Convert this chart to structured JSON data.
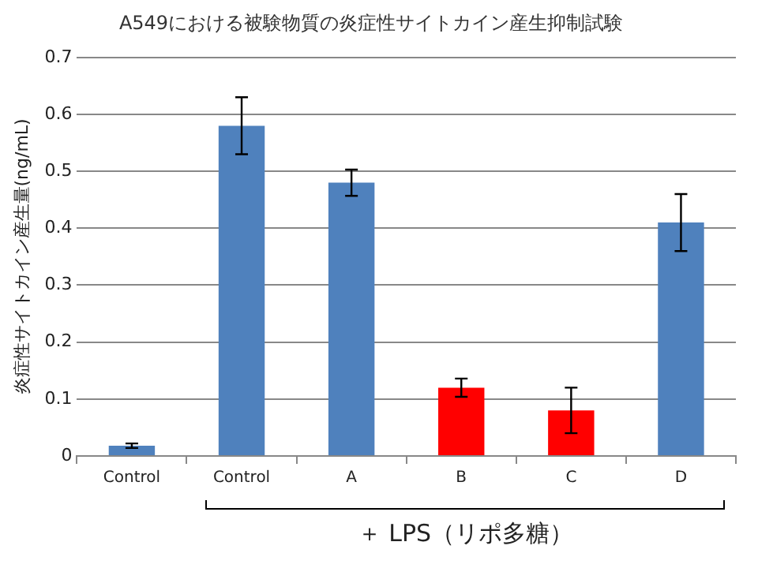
{
  "chart_data": {
    "type": "bar",
    "title": "A549における被験物質の炎症性サイトカイン産生抑制試験",
    "ylabel": "炎症性サイトカイン産生量(ng/mL)",
    "categories": [
      "Control",
      "Control",
      "A",
      "B",
      "C",
      "D"
    ],
    "values": [
      0.018,
      0.58,
      0.48,
      0.12,
      0.08,
      0.41
    ],
    "colors": [
      "#4f81bd",
      "#4f81bd",
      "#4f81bd",
      "#ff0000",
      "#ff0000",
      "#4f81bd"
    ],
    "errors": [
      0.004,
      0.05,
      0.023,
      0.016,
      0.04,
      0.05
    ],
    "ylim": [
      0,
      0.7
    ],
    "yticks": [
      0,
      0.1,
      0.2,
      0.3,
      0.4,
      0.5,
      0.6,
      0.7
    ],
    "grid": "y",
    "annotations": [
      "＋ LPS（リポ多糖）"
    ]
  }
}
